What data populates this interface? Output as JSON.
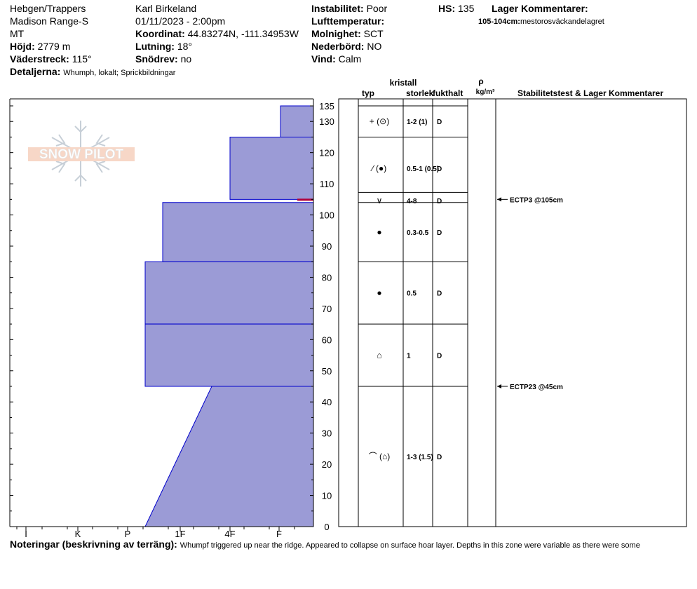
{
  "header": {
    "location": [
      "Hebgen/Trappers",
      "Madison Range-S",
      "MT"
    ],
    "elevation_label": "Höjd:",
    "elevation_value": "2779 m",
    "aspect_label": "Väderstreck:",
    "aspect_value": "115°",
    "details_label": "Detaljerna:",
    "details_value": "Whumph, lokalt; Sprickbildningar",
    "observer": "Karl Birkeland",
    "datetime": "01/11/2023 - 2:00pm",
    "coord_label": "Koordinat:",
    "coord_value": "44.83274N, -111.34953W",
    "slope_label": "Lutning:",
    "slope_value": "18°",
    "drift_label": "Snödrev:",
    "drift_value": "no",
    "instability_label": "Instabilitet:",
    "instability_value": "Poor",
    "airtemp_label": "Lufttemperatur:",
    "sky_label": "Molnighet:",
    "sky_value": "SCT",
    "precip_label": "Nederbörd:",
    "precip_value": "NO",
    "wind_label": "Vind:",
    "wind_value": "Calm",
    "hs_label": "HS:",
    "hs_value": "135",
    "layer_comments_label": "Lager Kommentarer:",
    "layer_comment_range": "105-104cm:",
    "layer_comment_text": "mestorosväckandelagret"
  },
  "logo_text": "SNOW PILOT",
  "columns": {
    "kristall": "kristall",
    "typ": "typ",
    "storlek": "storlek",
    "fukthalt": "fukthalt",
    "rho": "ρ",
    "density_unit": "kg/m³",
    "stability": "Stabilitetstest & Lager Kommentarer"
  },
  "notes": {
    "label": "Noteringar (beskrivning av terräng):",
    "text": "Whumpf triggered up near the ridge.  Appeared to collapse on surface hoar layer.  Depths in this zone were variable as there were some"
  },
  "chart_data": {
    "type": "snow-profile",
    "hs": 135,
    "y_axis": {
      "min": 0,
      "max": 135,
      "ticks": [
        0,
        10,
        20,
        30,
        40,
        50,
        60,
        70,
        80,
        90,
        100,
        110,
        120,
        130,
        135
      ]
    },
    "hardness_scale": [
      "I",
      "K",
      "P",
      "1F",
      "4F",
      "F"
    ],
    "colors": {
      "fill": "#9b9bd6",
      "stroke": "#0000cc",
      "weak_layer": "#b0003a"
    },
    "layers": [
      {
        "top": 135,
        "bottom": 125,
        "hardness_top": "F-",
        "hardness_bottom": "F-",
        "grain": "+ (⊙)",
        "size": "1-2 (1)",
        "moisture": "D"
      },
      {
        "top": 125,
        "bottom": 105,
        "hardness_top": "4F+",
        "hardness_bottom": "4F+",
        "grain": "⁄ (●)",
        "size": "0.5-1 (0.5)",
        "moisture": "D"
      },
      {
        "top": 105,
        "bottom": 104,
        "hardness_top": "F",
        "hardness_bottom": "F",
        "grain": "∨",
        "size": "4-8",
        "moisture": "D"
      },
      {
        "top": 104,
        "bottom": 85,
        "hardness_top": "1F",
        "hardness_bottom": "1F",
        "grain": "●",
        "size": "0.3-0.5",
        "moisture": "D"
      },
      {
        "top": 85,
        "bottom": 65,
        "hardness_top": "1F-",
        "hardness_bottom": "1F-",
        "grain": "●",
        "size": "0.5",
        "moisture": "D"
      },
      {
        "top": 65,
        "bottom": 45,
        "hardness_top": "1F-",
        "hardness_bottom": "1F-",
        "grain": "⌂",
        "size": "1",
        "moisture": "D"
      },
      {
        "top": 45,
        "bottom": 0,
        "hardness_top": "1F+",
        "hardness_bottom": "1F-",
        "grain": "⌒ (⌂)",
        "size": "1-3 (1.5)",
        "moisture": "D"
      }
    ],
    "tests": [
      {
        "depth": 105,
        "label": "ECTP3 @105cm"
      },
      {
        "depth": 45,
        "label": "ECTP23 @45cm"
      }
    ]
  }
}
